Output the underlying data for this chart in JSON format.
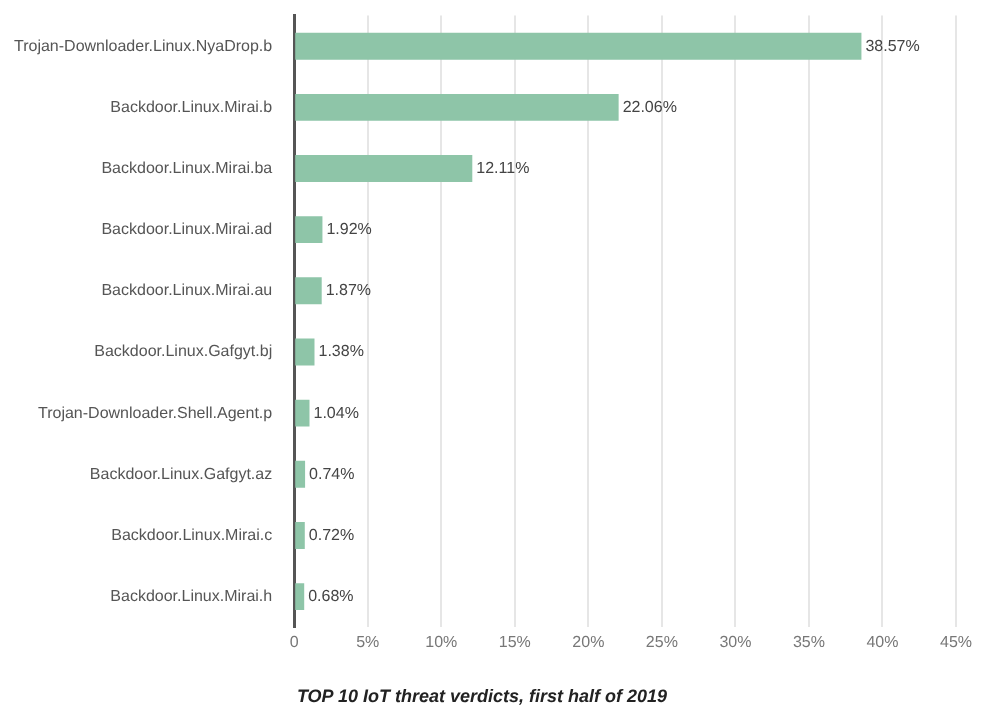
{
  "chart_data": {
    "type": "bar",
    "orientation": "horizontal",
    "title": "TOP 10 IoT threat verdicts, first half of 2019",
    "categories": [
      "Trojan-Downloader.Linux.NyaDrop.b",
      "Backdoor.Linux.Mirai.b",
      "Backdoor.Linux.Mirai.ba",
      "Backdoor.Linux.Mirai.ad",
      "Backdoor.Linux.Mirai.au",
      "Backdoor.Linux.Gafgyt.bj",
      "Trojan-Downloader.Shell.Agent.p",
      "Backdoor.Linux.Gafgyt.az",
      "Backdoor.Linux.Mirai.c",
      "Backdoor.Linux.Mirai.h"
    ],
    "values": [
      38.57,
      22.06,
      12.11,
      1.92,
      1.87,
      1.38,
      1.04,
      0.74,
      0.72,
      0.68
    ],
    "value_labels": [
      "38.57%",
      "22.06%",
      "12.11%",
      "1.92%",
      "1.87%",
      "1.38%",
      "1.04%",
      "0.74%",
      "0.72%",
      "0.68%"
    ],
    "color": "#8ec5a8",
    "xlim": [
      0,
      45
    ],
    "xticks": [
      0,
      {
        "value": 5,
        "label": "5%"
      },
      {
        "value": 10,
        "label": "10%"
      },
      {
        "value": 15,
        "label": "15%"
      },
      {
        "value": 20,
        "label": "20%"
      },
      {
        "value": 25,
        "label": "25%"
      },
      {
        "value": 30,
        "label": "30%"
      },
      {
        "value": 35,
        "label": "35%"
      },
      {
        "value": 40,
        "label": "40%"
      },
      {
        "value": 45,
        "label": "45%"
      }
    ],
    "grid": "x"
  }
}
